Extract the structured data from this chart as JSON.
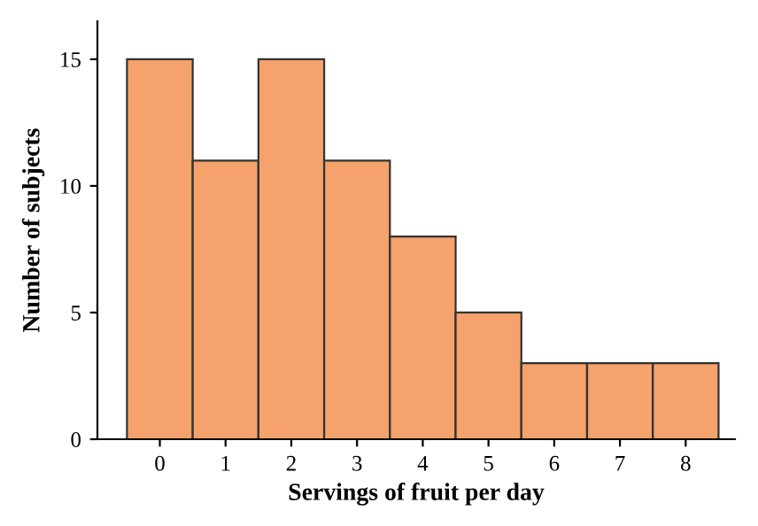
{
  "chart_data": {
    "type": "bar",
    "xlabel": "Servings of fruit per day",
    "ylabel": "Number of subjects",
    "categories": [
      "0",
      "1",
      "2",
      "3",
      "4",
      "5",
      "6",
      "7",
      "8"
    ],
    "values": [
      15,
      11,
      15,
      11,
      8,
      5,
      3,
      3,
      3
    ],
    "color": "#f5a26c",
    "ylim": [
      0,
      16.5
    ],
    "yticks": [
      0,
      5,
      10,
      15
    ],
    "grid": false
  }
}
